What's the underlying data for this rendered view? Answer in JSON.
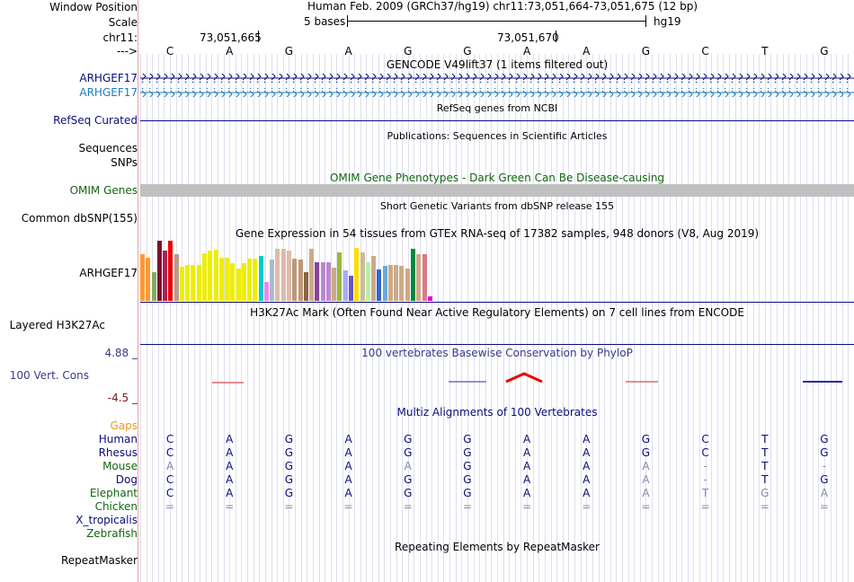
{
  "header": {
    "left_labels": [
      "Window Position",
      "Scale",
      "chr11:",
      "--->"
    ],
    "position_text": "Human Feb. 2009 (GRCh37/hg19)   chr11:73,051,664-73,051,675 (12 bp)",
    "scale_text": "5 bases",
    "assembly": "hg19",
    "coord_1": "73,051,665",
    "coord_2": "73,051,670",
    "bases": [
      "C",
      "A",
      "G",
      "A",
      "G",
      "G",
      "A",
      "A",
      "G",
      "C",
      "T",
      "G"
    ]
  },
  "tracks": {
    "gencode": {
      "title": "GENCODE V49lift37 (1 items filtered out)",
      "gene1": "ARHGEF17",
      "gene2": "ARHGEF17",
      "color1": "#0c0c78",
      "color2": "#1a7ebe"
    },
    "refseq": {
      "label": "RefSeq Curated",
      "title": "RefSeq genes from NCBI",
      "color": "#0c0c78"
    },
    "publications": {
      "label": "Sequences",
      "title": "Publications: Sequences in Scientific Articles"
    },
    "snps": {
      "label": "SNPs"
    },
    "omim": {
      "label": "OMIM Genes",
      "title": "OMIM Gene Phenotypes - Dark Green Can Be Disease-causing",
      "color": "#116611"
    },
    "dbsnp": {
      "label": "Common dbSNP(155)",
      "title": "Short Genetic Variants from dbSNP release 155"
    },
    "gtex": {
      "label": "ARHGEF17",
      "title": "Gene Expression in 54 tissues from GTEx RNA-seq of 17382 samples, 948 donors (V8, Aug 2019)",
      "bars": [
        {
          "v": 0.78,
          "c": "#ff9933"
        },
        {
          "v": 0.72,
          "c": "#ff9933"
        },
        {
          "v": 0.48,
          "c": "#88aa66"
        },
        {
          "v": 1.0,
          "c": "#771133"
        },
        {
          "v": 0.84,
          "c": "#aa2255"
        },
        {
          "v": 1.0,
          "c": "#ee0000"
        },
        {
          "v": 0.78,
          "c": "#bb9988"
        },
        {
          "v": 0.56,
          "c": "#eeee00"
        },
        {
          "v": 0.6,
          "c": "#eeee00"
        },
        {
          "v": 0.6,
          "c": "#eeee00"
        },
        {
          "v": 0.6,
          "c": "#eeee00"
        },
        {
          "v": 0.79,
          "c": "#eeee00"
        },
        {
          "v": 0.84,
          "c": "#eeee00"
        },
        {
          "v": 0.85,
          "c": "#eeee00"
        },
        {
          "v": 0.72,
          "c": "#eeee00"
        },
        {
          "v": 0.72,
          "c": "#eeee00"
        },
        {
          "v": 0.62,
          "c": "#eeee00"
        },
        {
          "v": 0.54,
          "c": "#eeee00"
        },
        {
          "v": 0.62,
          "c": "#eeee00"
        },
        {
          "v": 0.7,
          "c": "#eeee00"
        },
        {
          "v": 0.7,
          "c": "#eeee00"
        },
        {
          "v": 0.74,
          "c": "#00cccc"
        },
        {
          "v": 0.32,
          "c": "#ee88ee"
        },
        {
          "v": 0.69,
          "c": "#aabbcc"
        },
        {
          "v": 0.86,
          "c": "#ddbbaa"
        },
        {
          "v": 0.86,
          "c": "#ddbbaa"
        },
        {
          "v": 0.84,
          "c": "#ddbbaa"
        },
        {
          "v": 0.7,
          "c": "#bb9977"
        },
        {
          "v": 0.69,
          "c": "#bb9977"
        },
        {
          "v": 0.48,
          "c": "#886644"
        },
        {
          "v": 0.86,
          "c": "#ccaa88"
        },
        {
          "v": 0.64,
          "c": "#884499"
        },
        {
          "v": 0.64,
          "c": "#bb88cc"
        },
        {
          "v": 0.64,
          "c": "#bb88cc"
        },
        {
          "v": 0.55,
          "c": "#ccaa88"
        },
        {
          "v": 0.8,
          "c": "#99bb33"
        },
        {
          "v": 0.5,
          "c": "#aaaaff"
        },
        {
          "v": 0.42,
          "c": "#6655cc"
        },
        {
          "v": 0.88,
          "c": "#ffdd00"
        },
        {
          "v": 0.8,
          "c": "#ccbb99"
        },
        {
          "v": 0.64,
          "c": "#bbeeaa"
        },
        {
          "v": 0.74,
          "c": "#ccaa88"
        },
        {
          "v": 0.52,
          "c": "#3366cc"
        },
        {
          "v": 0.58,
          "c": "#66aadd"
        },
        {
          "v": 0.6,
          "c": "#ccaa88"
        },
        {
          "v": 0.6,
          "c": "#ccaa88"
        },
        {
          "v": 0.58,
          "c": "#ccaa88"
        },
        {
          "v": 0.54,
          "c": "#ccaa88"
        },
        {
          "v": 0.86,
          "c": "#008844"
        },
        {
          "v": 0.78,
          "c": "#ccaa88"
        },
        {
          "v": 0.78,
          "c": "#dd7788"
        },
        {
          "v": 0.08,
          "c": "#dd00dd"
        }
      ]
    },
    "h3k27ac": {
      "label": "Layered H3K27Ac",
      "title": "H3K27Ac Mark (Often Found Near Active Regulatory Elements) on 7 cell lines from ENCODE"
    },
    "phylop": {
      "label": "100 Vert. Cons",
      "max": "4.88 _",
      "min": "-4.5 _",
      "title": "100 vertebrates Basewise Conservation by PhyloP",
      "title_color": "#3a3a8a",
      "pos_color": "#2a2a9a",
      "neg_color": "#cc2222"
    },
    "multiz": {
      "title": "Multiz Alignments of 100 Vertebrates",
      "gaps_label": "Gaps",
      "gaps_color": "#ee9922",
      "species": [
        {
          "name": "Human",
          "color": "#0c0c78",
          "bases": [
            "C",
            "A",
            "G",
            "A",
            "G",
            "G",
            "A",
            "A",
            "G",
            "C",
            "T",
            "G"
          ],
          "faint": []
        },
        {
          "name": "Rhesus",
          "color": "#0c0c78",
          "bases": [
            "C",
            "A",
            "G",
            "A",
            "G",
            "G",
            "A",
            "A",
            "G",
            "C",
            "T",
            "G"
          ],
          "faint": []
        },
        {
          "name": "Mouse",
          "color": "#116611",
          "bases": [
            "A",
            "A",
            "G",
            "A",
            "A",
            "G",
            "A",
            "A",
            "A",
            "-",
            "T",
            "-"
          ],
          "faint": [
            0,
            4,
            8,
            9,
            11
          ]
        },
        {
          "name": "Dog",
          "color": "#0c0c78",
          "bases": [
            "C",
            "A",
            "G",
            "A",
            "G",
            "G",
            "A",
            "A",
            "A",
            "-",
            "T",
            "G"
          ],
          "faint": [
            8,
            9
          ]
        },
        {
          "name": "Elephant",
          "color": "#116611",
          "bases": [
            "C",
            "A",
            "G",
            "A",
            "G",
            "G",
            "A",
            "A",
            "A",
            "T",
            "G",
            "A"
          ],
          "faint": [
            8,
            9,
            10,
            11
          ]
        },
        {
          "name": "Chicken",
          "color": "#116611",
          "bases": [
            "=",
            "=",
            "=",
            "=",
            "=",
            "=",
            "=",
            "=",
            "=",
            "=",
            "=",
            "="
          ],
          "faint": [
            0,
            1,
            2,
            3,
            4,
            5,
            6,
            7,
            8,
            9,
            10,
            11
          ]
        },
        {
          "name": "X_tropicalis",
          "color": "#0c0c78",
          "bases": [],
          "faint": []
        },
        {
          "name": "Zebrafish",
          "color": "#116611",
          "bases": [],
          "faint": []
        }
      ]
    },
    "repeatmasker": {
      "label": "RepeatMasker",
      "title": "Repeating Elements by RepeatMasker"
    }
  }
}
